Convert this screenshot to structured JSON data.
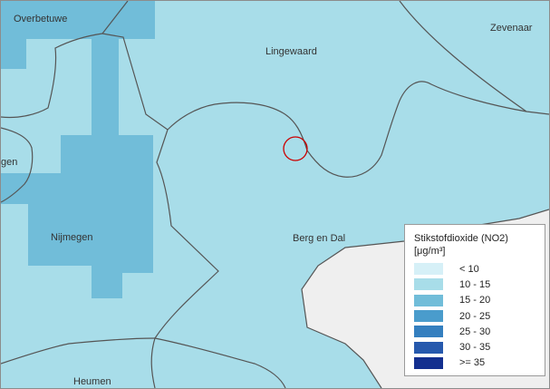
{
  "map": {
    "places": {
      "overbetuwe": "Overbetuwe",
      "zevenaar": "Zevenaar",
      "lingewaard": "Lingewaard",
      "nijmegen_partial": "gen",
      "nijmegen": "Nijmegen",
      "berg_en_dal": "Berg en Dal",
      "heumen": "Heumen"
    },
    "colors": {
      "class_lt10": "#d6f0f7",
      "class_10_15": "#a8dde9",
      "class_15_20": "#71bdd9",
      "class_20_25": "#4a9ccc",
      "class_25_30": "#347fbf",
      "class_30_35": "#2659ad",
      "class_ge35": "#132f8f",
      "outside_area": "#efefef",
      "boundary": "#555555",
      "marker": "#cc0000"
    }
  },
  "legend": {
    "title": "Stikstofdioxide (NO2)",
    "unit": "[μg/m³]",
    "items": [
      {
        "label": "< 10",
        "color": "#d6f0f7"
      },
      {
        "label": "10 - 15",
        "color": "#a8dde9"
      },
      {
        "label": "15 - 20",
        "color": "#71bdd9"
      },
      {
        "label": "20 - 25",
        "color": "#4a9ccc"
      },
      {
        "label": "25 - 30",
        "color": "#347fbf"
      },
      {
        "label": "30 - 35",
        "color": "#2659ad"
      },
      {
        "label": ">= 35",
        "color": "#132f8f"
      }
    ]
  }
}
